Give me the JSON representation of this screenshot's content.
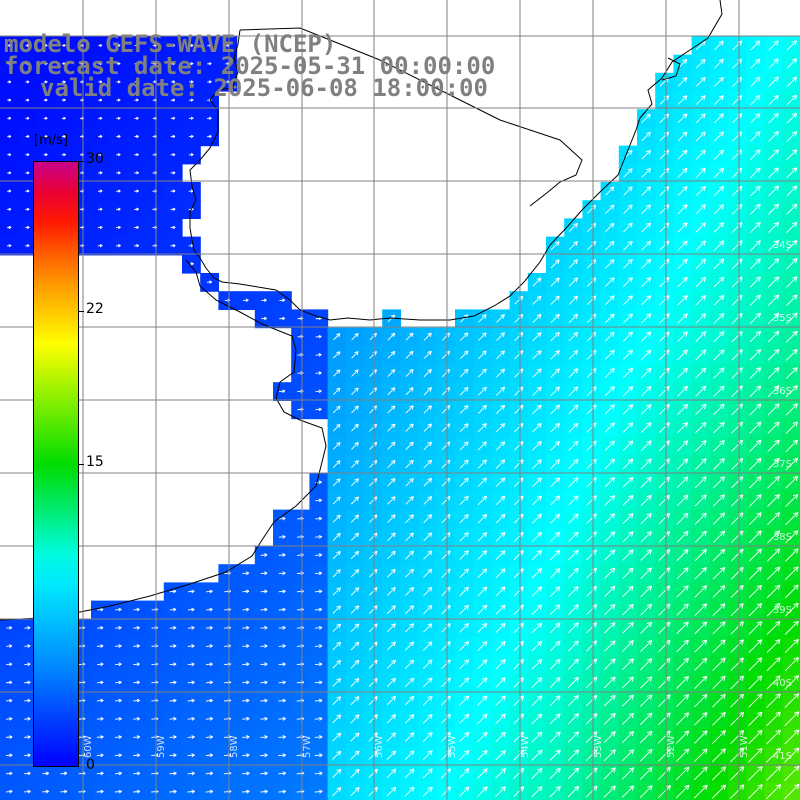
{
  "header": {
    "model": "modelo GEFS-WAVE (NCEP)",
    "forecast": "forecast date: 2025-05-31 00:00:00",
    "valid": "valid date: 2025-06-08 18:00:00"
  },
  "colorbar": {
    "unit": "[m/s]",
    "min": 0,
    "max": 30,
    "ticks": [
      "30",
      "22",
      "15",
      "0"
    ]
  },
  "map": {
    "lat_range": [
      -41.2,
      -30.5
    ],
    "lon_range": [
      -62.0,
      -50.3
    ],
    "lat_labels": [
      "34S",
      "35S",
      "36S",
      "37S",
      "38S",
      "39S",
      "40S",
      "41S"
    ],
    "lat_label_text": "",
    "lon_labels": [
      "60W",
      "59W",
      "58W",
      "57W",
      "56W",
      "55W",
      "54W",
      "53W",
      "52W",
      "51W"
    ],
    "colors": {
      "land": "#ffffff",
      "coast": "#000000",
      "grid": "#808080",
      "arrows": "#ffffff"
    }
  }
}
